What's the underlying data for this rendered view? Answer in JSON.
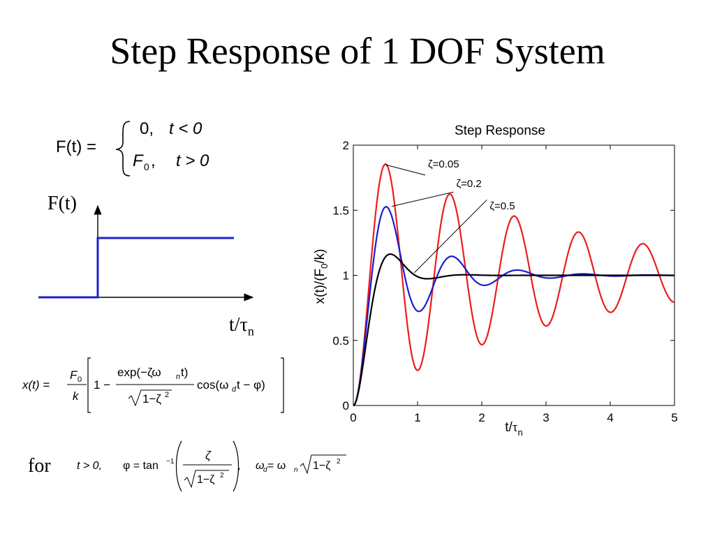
{
  "slide": {
    "title": "Step Response of 1 DOF System",
    "ft_axis_label": "F(t)",
    "t_axis_label_main": "t/",
    "t_axis_label_tau": "τ",
    "t_axis_label_sub": "n",
    "for_label": "for"
  },
  "equations": {
    "force_lhs": "F(t) =",
    "force_case1_value": "0,",
    "force_case1_cond": "t < 0",
    "force_case2_value": "F",
    "force_case2_sub": "0",
    "force_case2_comma": ",",
    "force_case2_cond": "t > 0",
    "response_lhs": "x(t) =",
    "response_num": "F",
    "response_num_sub": "0",
    "response_den": "k",
    "response_one_minus": "1 −",
    "response_exp": "exp(−ζω",
    "response_exp_sub": "n",
    "response_exp_end": "t)",
    "response_sqrt": "1−ζ",
    "response_sqrt_sup": "2",
    "response_cos": "cos(ω",
    "response_cos_sub": "d",
    "response_cos_end": "t − φ)",
    "cond_t": "t > 0,",
    "phi_lhs": "φ = tan",
    "phi_sup": "−1",
    "phi_num": "ζ",
    "phi_sqrt": "1−ζ",
    "phi_sqrt_sup": "2",
    "phi_comma": ",",
    "wd_lhs": "ω",
    "wd_lhs_sub": "d",
    "wd_eq": " = ω",
    "wd_rhs_sub": "n",
    "wd_sqrt": "1−ζ",
    "wd_sqrt_sup": "2"
  },
  "colors": {
    "step_line": "#1f1fcc",
    "zeta_005": "#ee1c1c",
    "zeta_02": "#1c1ccc",
    "zeta_05": "#000000"
  },
  "chart_data": {
    "type": "line",
    "title": "Step Response",
    "xlabel_main": "t/",
    "xlabel_tau": "τ",
    "xlabel_sub": "n",
    "ylabel": "x(t)/(F0/k)",
    "ylabel_main": "x(t)/(F",
    "ylabel_sub": "0",
    "ylabel_end": "/k)",
    "xlim": [
      0,
      5
    ],
    "ylim": [
      0,
      2
    ],
    "xticks": [
      0,
      1,
      2,
      3,
      4,
      5
    ],
    "xtick_labels": [
      "0",
      "1",
      "2",
      "3",
      "4",
      "5"
    ],
    "yticks": [
      0,
      0.5,
      1,
      1.5,
      2
    ],
    "ytick_labels": [
      "0",
      "0.5",
      "1",
      "1.5",
      "2"
    ],
    "grid": false,
    "series": [
      {
        "name": "ζ=0.05",
        "zeta": 0.05,
        "color": "#ee1c1c"
      },
      {
        "name": "ζ=0.2",
        "zeta": 0.2,
        "color": "#1c1ccc"
      },
      {
        "name": "ζ=0.5",
        "zeta": 0.5,
        "color": "#000000"
      }
    ],
    "annotations": [
      "ζ=0.05",
      "ζ=0.2",
      "ζ=0.5"
    ]
  }
}
